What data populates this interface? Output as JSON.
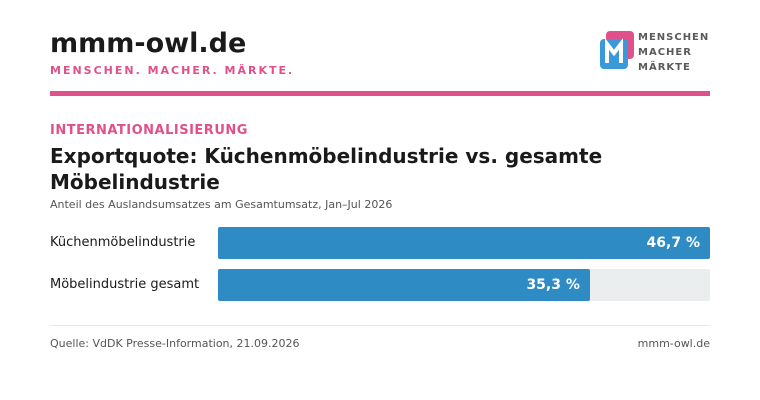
{
  "header": {
    "site_title": "mmm-owl.de",
    "tagline": "MENSCHEN. MACHER. MÄRKTE.",
    "logo_lines": [
      "MENSCHEN",
      "MACHER",
      "MÄRKTE"
    ]
  },
  "colors": {
    "accent": "#e0508a",
    "bar": "#2e8bc4",
    "track": "#ebeeef",
    "logo_blue": "#3a9ad9",
    "logo_pink": "#e0508a"
  },
  "article": {
    "kicker": "INTERNATIONALISIERUNG",
    "title": "Exportquote: Küchenmöbelindustrie vs. gesamte Möbelindustrie",
    "subtitle": "Anteil des Auslandsumsatzes am Gesamtumsatz, Jan–Jul 2026"
  },
  "chart_data": {
    "type": "bar",
    "orientation": "horizontal",
    "categories": [
      "Küchenmöbelindustrie",
      "Möbelindustrie gesamt"
    ],
    "values": [
      46.7,
      35.3
    ],
    "value_labels": [
      "46,7 %",
      "35,3 %"
    ],
    "unit": "%"
  },
  "footer": {
    "source": "Quelle: VdDK Presse-Information, 21.09.2026",
    "site": "mmm-owl.de"
  }
}
